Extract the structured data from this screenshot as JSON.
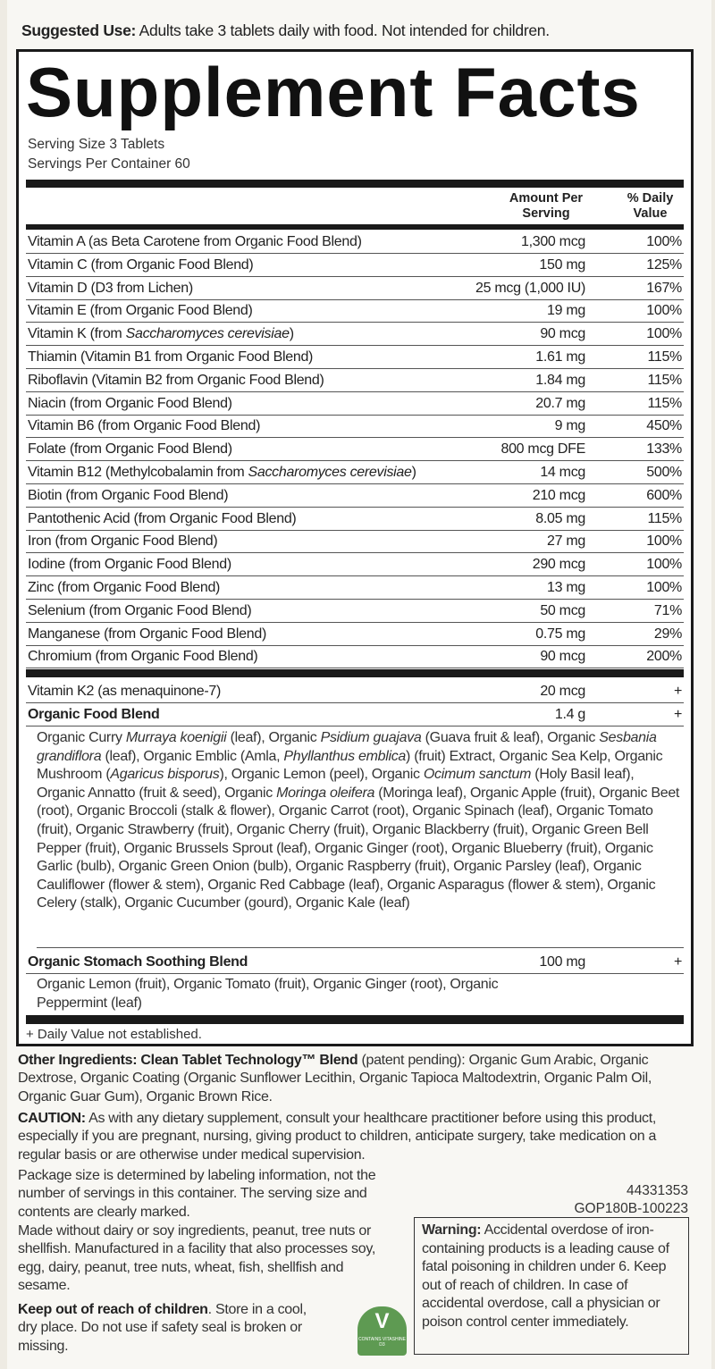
{
  "suggested_use": {
    "label": "Suggested Use:",
    "text": " Adults take 3 tablets daily with food. Not intended for children."
  },
  "title": "Supplement Facts",
  "serving_size": "Serving Size 3 Tablets",
  "servings_per_container": "Servings Per Container 60",
  "headers": {
    "amount": "Amount Per Serving",
    "dv": "% Daily Value"
  },
  "nutrients": [
    {
      "name": [
        [
          "Vitamin A (as Beta Carotene from Organic Food Blend)",
          0
        ]
      ],
      "amount": "1,300 mcg",
      "dv": "100%"
    },
    {
      "name": [
        [
          "Vitamin C (from Organic Food Blend)",
          0
        ]
      ],
      "amount": "150 mg",
      "dv": "125%"
    },
    {
      "name": [
        [
          "Vitamin D (D3 from Lichen)",
          0
        ]
      ],
      "amount": "25 mcg (1,000 IU)",
      "dv": "167%"
    },
    {
      "name": [
        [
          "Vitamin E (from Organic Food Blend)",
          0
        ]
      ],
      "amount": "19 mg",
      "dv": "100%"
    },
    {
      "name": [
        [
          "Vitamin K (from ",
          0
        ],
        [
          "Saccharomyces cerevisiae",
          1
        ],
        [
          ")",
          0
        ]
      ],
      "amount": "90 mcg",
      "dv": "100%"
    },
    {
      "name": [
        [
          "Thiamin (Vitamin B1 from Organic Food Blend)",
          0
        ]
      ],
      "amount": "1.61 mg",
      "dv": "115%"
    },
    {
      "name": [
        [
          "Riboflavin (Vitamin B2 from Organic Food Blend)",
          0
        ]
      ],
      "amount": "1.84 mg",
      "dv": "115%"
    },
    {
      "name": [
        [
          "Niacin (from Organic Food Blend)",
          0
        ]
      ],
      "amount": "20.7 mg",
      "dv": "115%"
    },
    {
      "name": [
        [
          "Vitamin B6 (from Organic Food Blend)",
          0
        ]
      ],
      "amount": "9 mg",
      "dv": "450%"
    },
    {
      "name": [
        [
          "Folate (from Organic Food Blend)",
          0
        ]
      ],
      "amount": "800 mcg DFE",
      "dv": "133%"
    },
    {
      "name": [
        [
          "Vitamin B12 (Methylcobalamin from ",
          0
        ],
        [
          "Saccharomyces cerevisiae",
          1
        ],
        [
          ")",
          0
        ]
      ],
      "amount": "14 mcg",
      "dv": "500%"
    },
    {
      "name": [
        [
          "Biotin (from Organic Food Blend)",
          0
        ]
      ],
      "amount": "210 mcg",
      "dv": "600%"
    },
    {
      "name": [
        [
          "Pantothenic Acid (from Organic Food Blend)",
          0
        ]
      ],
      "amount": "8.05 mg",
      "dv": "115%"
    },
    {
      "name": [
        [
          "Iron (from Organic Food Blend)",
          0
        ]
      ],
      "amount": "27 mg",
      "dv": "100%"
    },
    {
      "name": [
        [
          "Iodine (from Organic Food Blend)",
          0
        ]
      ],
      "amount": "290 mcg",
      "dv": "100%"
    },
    {
      "name": [
        [
          "Zinc (from Organic Food Blend)",
          0
        ]
      ],
      "amount": "13 mg",
      "dv": "100%"
    },
    {
      "name": [
        [
          "Selenium (from Organic Food Blend)",
          0
        ]
      ],
      "amount": "50 mcg",
      "dv": "71%"
    },
    {
      "name": [
        [
          "Manganese (from Organic Food Blend)",
          0
        ]
      ],
      "amount": "0.75 mg",
      "dv": "29%"
    },
    {
      "name": [
        [
          "Chromium (from Organic Food Blend)",
          0
        ]
      ],
      "amount": "90 mcg",
      "dv": "200%"
    }
  ],
  "k2": {
    "name": "Vitamin K2 (as menaquinone-7)",
    "amount": "20 mcg",
    "dv": "+"
  },
  "food_blend": {
    "name": "Organic Food Blend",
    "amount": "1.4 g",
    "dv": "+",
    "ingredients": [
      [
        "Organic Curry ",
        0
      ],
      [
        "Murraya koenigii",
        1
      ],
      [
        " (leaf), Organic ",
        0
      ],
      [
        "Psidium guajava",
        1
      ],
      [
        " (Guava fruit & leaf), Organic ",
        0
      ],
      [
        "Sesbania grandiflora",
        1
      ],
      [
        " (leaf), Organic Emblic (Amla, ",
        0
      ],
      [
        "Phyllanthus emblica",
        1
      ],
      [
        ") (fruit) Extract, Organic Sea Kelp, Organic Mushroom (",
        0
      ],
      [
        "Agaricus bisporus",
        1
      ],
      [
        "), Organic Lemon (peel), Organic ",
        0
      ],
      [
        "Ocimum sanctum",
        1
      ],
      [
        " (Holy Basil leaf), Organic Annatto (fruit & seed), Organic ",
        0
      ],
      [
        "Moringa oleifera",
        1
      ],
      [
        " (Moringa leaf), Organic Apple (fruit), Organic Beet (root), Organic Broccoli (stalk & flower), Organic Carrot (root), Organic Spinach (leaf), Organic Tomato (fruit), Organic Strawberry (fruit), Organic Cherry (fruit), Organic Blackberry (fruit), Organic Green Bell Pepper (fruit), Organic Brussels Sprout (leaf), Organic Ginger (root), Organic Blueberry (fruit), Organic Garlic (bulb), Organic Green Onion (bulb), Organic Raspberry (fruit), Organic Parsley (leaf), Organic Cauliflower (flower & stem), Organic Red Cabbage (leaf), Organic Asparagus (flower & stem), Organic Celery (stalk), Organic Cucumber (gourd), Organic Kale (leaf)",
        0
      ]
    ]
  },
  "stomach_blend": {
    "name": "Organic Stomach Soothing Blend",
    "amount": "100 mg",
    "dv": "+",
    "ingredients": "Organic Lemon (fruit), Organic Tomato (fruit), Organic Ginger (root), Organic Peppermint (leaf)"
  },
  "footnote": "+ Daily Value not established.",
  "other_ingredients": {
    "label": "Other Ingredients: Clean Tablet Technology™ Blend",
    "text": " (patent pending): Organic Gum Arabic, Organic Dextrose, Organic Coating (Organic Sunflower Lecithin, Organic Tapioca Maltodextrin, Organic Palm Oil, Organic Guar Gum), Organic Brown Rice."
  },
  "caution": {
    "label": "CAUTION:",
    "text": " As with any dietary supplement, consult your healthcare practitioner before using this product, especially if you are pregnant, nursing, giving product to children, anticipate surgery, take medication on a regular basis or are otherwise under medical supervision."
  },
  "package_note": "Package size is determined by labeling information, not the number of servings in this container. The serving size and contents are clearly marked.",
  "allergen_note": "Made without dairy or soy ingredients, peanut, tree nuts or shellfish. Manufactured in a facility that also processes soy, egg, dairy, peanut, tree nuts, wheat, fish, shellfish and sesame.",
  "keep_out": {
    "label": "Keep out of reach of children",
    "text": ". Store in a cool, dry place. Do not use if safety seal is broken or missing."
  },
  "codes": [
    "44331353",
    "GOP180B-100223"
  ],
  "warning": {
    "label": "Warning:",
    "text": " Accidental overdose of iron-containing products is a leading cause of fatal poisoning in children under 6. Keep out of reach of children. In case of accidental overdose, call a physician or poison control center immediately."
  },
  "badge": {
    "text": "CONTAINS VITASHINE D3",
    "color": "#5e9a52"
  }
}
